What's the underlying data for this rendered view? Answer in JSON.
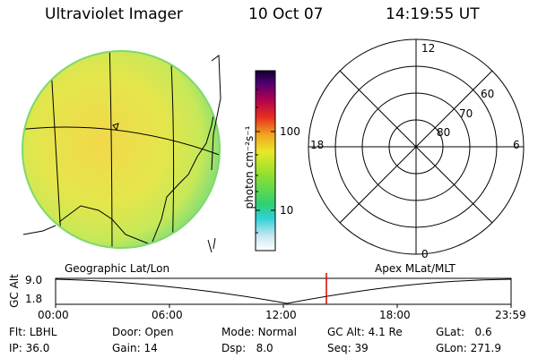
{
  "header": {
    "instrument": "Ultraviolet Imager",
    "date": "10 Oct 07",
    "time": "14:19:55 UT"
  },
  "colorbar": {
    "unit_label": "photon cm⁻²s⁻¹",
    "ticks": [
      "100",
      "10"
    ]
  },
  "polar": {
    "mlt_labels": {
      "top": "12",
      "bottom": "0",
      "left": "18",
      "right": "6"
    },
    "lat_labels": [
      "60",
      "70",
      "80"
    ]
  },
  "map": {
    "left_title": "Geographic Lat/Lon",
    "right_title": "Apex MLat/MLT"
  },
  "altitude_plot": {
    "ylabel": "GC Alt",
    "y_ticks": [
      "9.0",
      "1.8"
    ],
    "x_ticks": [
      "00:00",
      "06:00",
      "12:00",
      "18:00",
      "23:59"
    ],
    "current_time_marker": "14:19:55"
  },
  "status": {
    "flt": {
      "label": "Flt:",
      "value": "LBHL"
    },
    "door": {
      "label": "Door:",
      "value": "Open"
    },
    "mode": {
      "label": "Mode:",
      "value": "Normal"
    },
    "gc_alt": {
      "label": "GC Alt:",
      "value": "4.1 Re"
    },
    "glat": {
      "label": "GLat:",
      "value": "0.6"
    },
    "ip": {
      "label": "IP:",
      "value": "36.0"
    },
    "gain": {
      "label": "Gain:",
      "value": "14"
    },
    "dsp": {
      "label": "Dsp:",
      "value": "8.0"
    },
    "seq": {
      "label": "Seq:",
      "value": "39"
    },
    "glon": {
      "label": "GLon:",
      "value": "271.9"
    }
  },
  "colors": {
    "disk_fill": "#e6e24a",
    "disk_edge": "#8fe070",
    "marker": "#e00000"
  }
}
